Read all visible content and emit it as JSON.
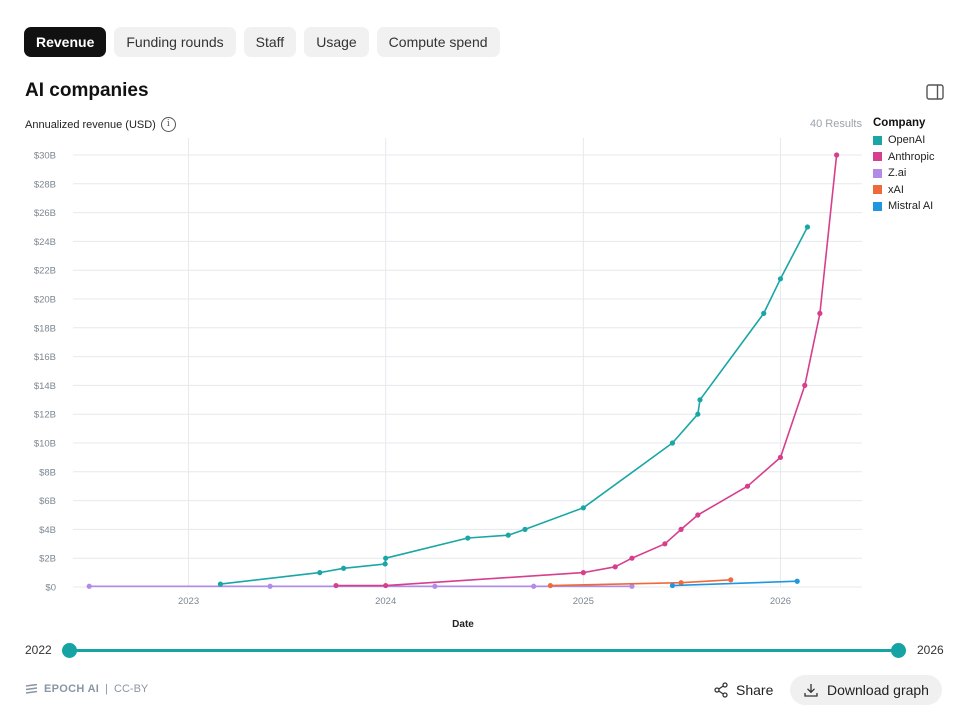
{
  "tabs": [
    {
      "label": "Revenue",
      "active": true
    },
    {
      "label": "Funding rounds",
      "active": false
    },
    {
      "label": "Staff",
      "active": false
    },
    {
      "label": "Usage",
      "active": false
    },
    {
      "label": "Compute spend",
      "active": false
    }
  ],
  "header": {
    "title": "AI companies",
    "panel_icon": "sidebar-panel-icon"
  },
  "results_text": "40 Results",
  "legend": {
    "title": "Company",
    "items": [
      {
        "name": "OpenAI",
        "color": "#1aa6a6"
      },
      {
        "name": "Anthropic",
        "color": "#d63f8c"
      },
      {
        "name": "Z.ai",
        "color": "#b28ae8"
      },
      {
        "name": "xAI",
        "color": "#ee6a3c"
      },
      {
        "name": "Mistral AI",
        "color": "#2196e0"
      }
    ]
  },
  "range": {
    "start": "2022",
    "end": "2026"
  },
  "footer": {
    "brand": "EPOCH AI",
    "separator": "|",
    "license": "CC-BY",
    "share_label": "Share",
    "download_label": "Download graph"
  },
  "colors": {
    "accent": "#15a3a3",
    "gridline": "#e6e9ec",
    "axis_text": "#7d8791"
  },
  "chart_data": {
    "type": "line",
    "title": "AI companies",
    "ylabel": "Annualized revenue (USD)",
    "xlabel": "Date",
    "x_ticks": [
      "2023",
      "2024",
      "2025",
      "2026"
    ],
    "y_ticks": [
      "$0",
      "$2B",
      "$4B",
      "$6B",
      "$8B",
      "$10B",
      "$12B",
      "$14B",
      "$16B",
      "$18B",
      "$20B",
      "$22B",
      "$24B",
      "$26B",
      "$28B",
      "$30B"
    ],
    "xlim": [
      "2022-06-01",
      "2026-06-01"
    ],
    "ylim": [
      0,
      30
    ],
    "y_unit": "billion USD",
    "grid": true,
    "legend_position": "right",
    "series": [
      {
        "name": "OpenAI",
        "color": "#1aa6a6",
        "points": [
          [
            "2023-03-01",
            0.2
          ],
          [
            "2023-09-01",
            1.0
          ],
          [
            "2023-10-15",
            1.3
          ],
          [
            "2023-12-31",
            1.6
          ],
          [
            "2024-01-01",
            2.0
          ],
          [
            "2024-06-01",
            3.4
          ],
          [
            "2024-08-15",
            3.6
          ],
          [
            "2024-09-15",
            4.0
          ],
          [
            "2025-01-01",
            5.5
          ],
          [
            "2025-06-15",
            10.0
          ],
          [
            "2025-08-01",
            12.0
          ],
          [
            "2025-08-05",
            13.0
          ],
          [
            "2025-12-01",
            19.0
          ],
          [
            "2026-01-01",
            21.4
          ],
          [
            "2026-02-20",
            25.0
          ]
        ]
      },
      {
        "name": "Anthropic",
        "color": "#d63f8c",
        "points": [
          [
            "2023-10-01",
            0.1
          ],
          [
            "2024-01-01",
            0.1
          ],
          [
            "2025-01-01",
            1.0
          ],
          [
            "2025-03-01",
            1.4
          ],
          [
            "2025-04-01",
            2.0
          ],
          [
            "2025-06-01",
            3.0
          ],
          [
            "2025-07-01",
            4.0
          ],
          [
            "2025-08-01",
            5.0
          ],
          [
            "2025-11-01",
            7.0
          ],
          [
            "2026-01-01",
            9.0
          ],
          [
            "2026-02-15",
            14.0
          ],
          [
            "2026-03-15",
            19.0
          ],
          [
            "2026-04-15",
            30.0
          ]
        ]
      },
      {
        "name": "Z.ai",
        "color": "#b28ae8",
        "points": [
          [
            "2022-07-01",
            0.05
          ],
          [
            "2023-06-01",
            0.05
          ],
          [
            "2024-04-01",
            0.05
          ],
          [
            "2024-10-01",
            0.05
          ],
          [
            "2025-04-01",
            0.05
          ]
        ]
      },
      {
        "name": "xAI",
        "color": "#ee6a3c",
        "points": [
          [
            "2024-11-01",
            0.1
          ],
          [
            "2025-07-01",
            0.3
          ],
          [
            "2025-10-01",
            0.5
          ]
        ]
      },
      {
        "name": "Mistral AI",
        "color": "#2196e0",
        "points": [
          [
            "2025-06-15",
            0.1
          ],
          [
            "2026-02-01",
            0.4
          ]
        ]
      }
    ]
  }
}
